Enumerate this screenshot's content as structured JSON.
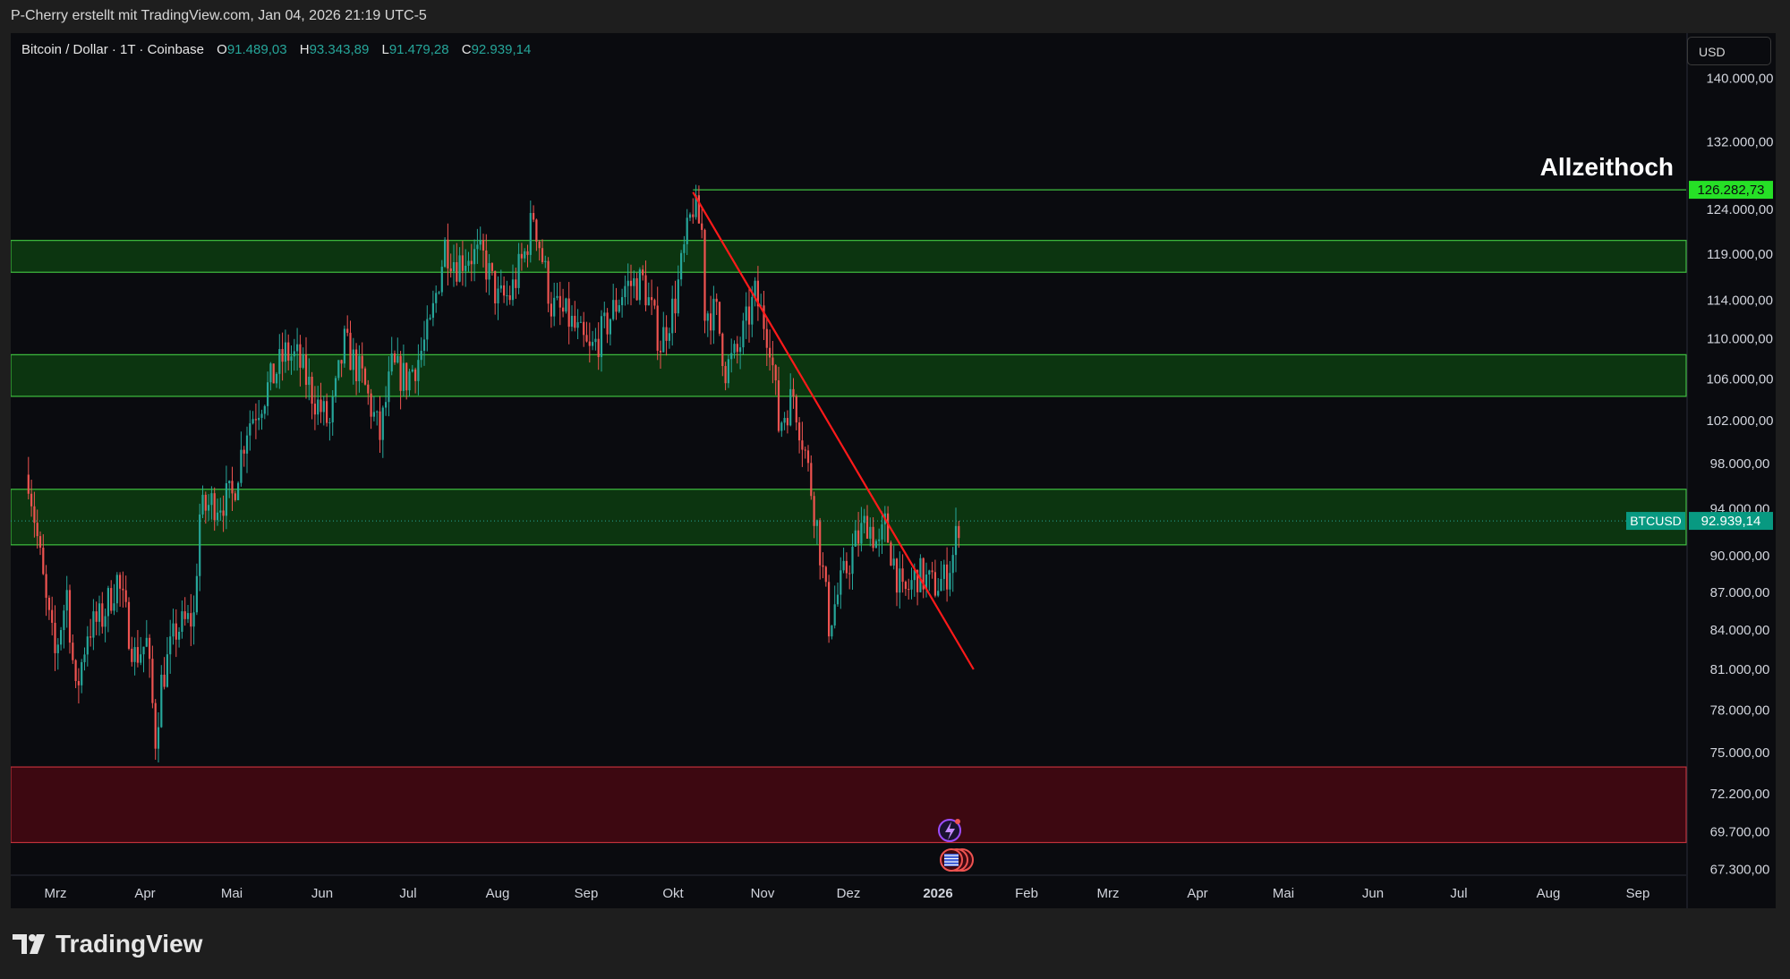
{
  "header": {
    "author_line": "P-Cherry erstellt mit TradingView.com, Jan 04, 2026 21:19 UTC-5"
  },
  "legend": {
    "symbol": "Bitcoin / Dollar · 1T · Coinbase",
    "open_label": "O",
    "open": "91.489,03",
    "high_label": "H",
    "high": "93.343,89",
    "low_label": "L",
    "low": "91.479,28",
    "close_label": "C",
    "close": "92.939,14"
  },
  "currency": "USD",
  "footer": {
    "brand": "TradingView"
  },
  "colors": {
    "background": "#0a0b0f",
    "up": "#26a69a",
    "down": "#ef5350",
    "zone_green_fill": "#0c3510",
    "zone_green_border": "#3fbf3f",
    "zone_red_fill": "#3d0811",
    "zone_red_border": "#c0303a",
    "trendline": "#ff1a1a",
    "ath_label_bg": "#26e026",
    "price_label_bg": "#089981"
  },
  "chart_data": {
    "type": "candlestick",
    "title": "",
    "x_axis_ticks": [
      "Mrz",
      "Apr",
      "Mai",
      "Jun",
      "Jul",
      "Aug",
      "Sep",
      "Okt",
      "Nov",
      "Dez",
      "2026",
      "Feb",
      "Mrz",
      "Apr",
      "Mai",
      "Jun",
      "Jul",
      "Aug",
      "Sep"
    ],
    "y_axis_ticks": [
      "140.000,00",
      "132.000,00",
      "124.000,00",
      "119.000,00",
      "114.000,00",
      "110.000,00",
      "106.000,00",
      "102.000,00",
      "98.000,00",
      "94.000,00",
      "90.000,00",
      "87.000,00",
      "84.000,00",
      "81.000,00",
      "78.000,00",
      "75.000,00",
      "72.200,00",
      "69.700,00",
      "67.300,00"
    ],
    "y_scale": "log",
    "ylim": [
      67000,
      146000
    ],
    "annotation": "Allzeithoch",
    "ath_price": 126282.73,
    "ath_label": "126.282,73",
    "current_price": 92939.14,
    "current_price_label": "92.939,14",
    "symbol_tag": "BTCUSD",
    "zones": [
      {
        "type": "resistance",
        "low": 117000,
        "high": 120500
      },
      {
        "type": "support",
        "low": 104300,
        "high": 108400
      },
      {
        "type": "support",
        "low": 90900,
        "high": 95700
      },
      {
        "type": "support",
        "low": 69000,
        "high": 74000
      }
    ],
    "trendline": {
      "from": [
        "2025-10-06",
        126000
      ],
      "to": [
        "2026-01-09",
        81000
      ]
    },
    "price_path": [
      [
        "2025-02-23",
        97000
      ],
      [
        "2025-03-01",
        86000
      ],
      [
        "2025-03-04",
        82000
      ],
      [
        "2025-03-08",
        87000
      ],
      [
        "2025-03-11",
        79000
      ],
      [
        "2025-03-15",
        84000
      ],
      [
        "2025-03-20",
        85000
      ],
      [
        "2025-03-25",
        88000
      ],
      [
        "2025-03-31",
        82000
      ],
      [
        "2025-04-04",
        83000
      ],
      [
        "2025-04-07",
        76000
      ],
      [
        "2025-04-09",
        80000
      ],
      [
        "2025-04-14",
        84000
      ],
      [
        "2025-04-20",
        85000
      ],
      [
        "2025-04-22",
        93500
      ],
      [
        "2025-04-26",
        94500
      ],
      [
        "2025-05-03",
        95000
      ],
      [
        "2025-05-08",
        101500
      ],
      [
        "2025-05-13",
        104000
      ],
      [
        "2025-05-21",
        108500
      ],
      [
        "2025-05-25",
        108000
      ],
      [
        "2025-05-31",
        104000
      ],
      [
        "2025-06-05",
        101500
      ],
      [
        "2025-06-10",
        109500
      ],
      [
        "2025-06-16",
        106000
      ],
      [
        "2025-06-22",
        100500
      ],
      [
        "2025-06-26",
        107000
      ],
      [
        "2025-07-01",
        106000
      ],
      [
        "2025-07-05",
        108000
      ],
      [
        "2025-07-09",
        111000
      ],
      [
        "2025-07-14",
        120000
      ],
      [
        "2025-07-18",
        118000
      ],
      [
        "2025-07-22",
        119000
      ],
      [
        "2025-07-27",
        118500
      ],
      [
        "2025-08-01",
        114000
      ],
      [
        "2025-08-05",
        114500
      ],
      [
        "2025-08-10",
        119000
      ],
      [
        "2025-08-13",
        123500
      ],
      [
        "2025-08-19",
        113500
      ],
      [
        "2025-08-25",
        112000
      ],
      [
        "2025-09-01",
        108500
      ],
      [
        "2025-09-06",
        111000
      ],
      [
        "2025-09-13",
        115500
      ],
      [
        "2025-09-19",
        116000
      ],
      [
        "2025-09-25",
        109500
      ],
      [
        "2025-09-30",
        114000
      ],
      [
        "2025-10-06",
        124500
      ],
      [
        "2025-10-09",
        121500
      ],
      [
        "2025-10-10",
        113000
      ],
      [
        "2025-10-14",
        112500
      ],
      [
        "2025-10-17",
        107000
      ],
      [
        "2025-10-21",
        108500
      ],
      [
        "2025-10-27",
        114500
      ],
      [
        "2025-11-01",
        110000
      ],
      [
        "2025-11-04",
        101500
      ],
      [
        "2025-11-09",
        104500
      ],
      [
        "2025-11-13",
        99000
      ],
      [
        "2025-11-17",
        92500
      ],
      [
        "2025-11-21",
        84500
      ],
      [
        "2025-11-25",
        87500
      ],
      [
        "2025-11-30",
        91000
      ],
      [
        "2025-12-04",
        93000
      ],
      [
        "2025-12-08",
        90500
      ],
      [
        "2025-12-10",
        92500
      ],
      [
        "2025-12-16",
        86500
      ],
      [
        "2025-12-21",
        88500
      ],
      [
        "2025-12-26",
        87500
      ],
      [
        "2025-12-30",
        88000
      ],
      [
        "2026-01-02",
        90000
      ],
      [
        "2026-01-04",
        92939
      ]
    ]
  }
}
